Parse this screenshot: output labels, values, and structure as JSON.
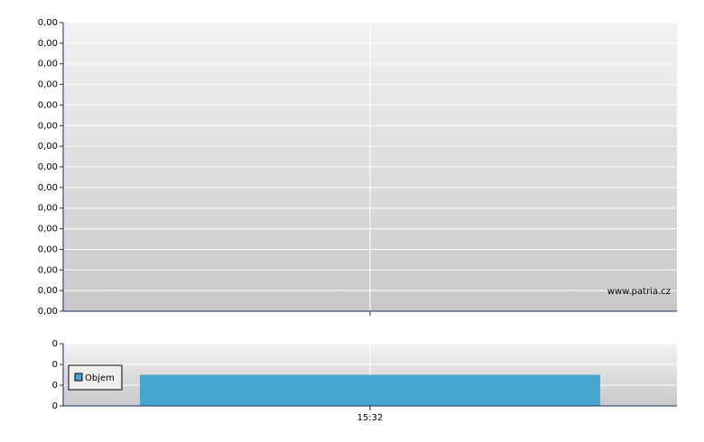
{
  "chart_data": [
    {
      "type": "line",
      "annotation": "www.patria.cz",
      "grid": true,
      "ylim": [
        0,
        0.0014
      ],
      "yticks": [
        {
          "value": 0,
          "label": "0,00"
        },
        {
          "value": 0.0001,
          "label": "0,00"
        },
        {
          "value": 0.0002,
          "label": "0,00"
        },
        {
          "value": 0.0003,
          "label": "0,00"
        },
        {
          "value": 0.0004,
          "label": "0,00"
        },
        {
          "value": 0.0005,
          "label": "0,00"
        },
        {
          "value": 0.0006,
          "label": "0,00"
        },
        {
          "value": 0.0007,
          "label": "0,00"
        },
        {
          "value": 0.0008,
          "label": "0,00"
        },
        {
          "value": 0.0009,
          "label": "0,00"
        },
        {
          "value": 0.001,
          "label": "0,00"
        },
        {
          "value": 0.0011,
          "label": "0,00"
        },
        {
          "value": 0.0012,
          "label": "0,00"
        },
        {
          "value": 0.0013,
          "label": "0,00"
        },
        {
          "value": 0.0014,
          "label": "0,00"
        }
      ]
    },
    {
      "type": "bar",
      "grid": true,
      "legend": "left",
      "categories": [
        "15:32"
      ],
      "series": [
        {
          "name": "Objem",
          "color": "#46a6cf",
          "values": [
            0.15
          ]
        }
      ],
      "ylim": [
        0,
        0.3
      ],
      "yticks": [
        {
          "value": 0,
          "label": "0"
        },
        {
          "value": 0.1,
          "label": "0"
        },
        {
          "value": 0.2,
          "label": "0"
        },
        {
          "value": 0.3,
          "label": "0"
        }
      ]
    }
  ]
}
